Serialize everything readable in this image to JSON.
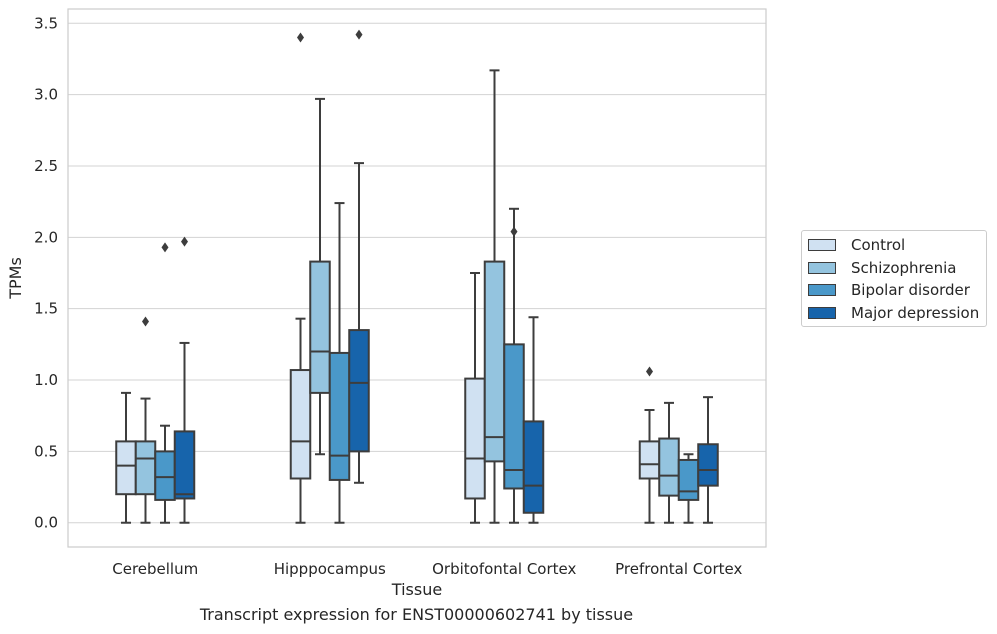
{
  "chart_data": {
    "type": "box",
    "xlabel": "Tissue",
    "ylabel": "TPMs",
    "ylim": [
      -0.17,
      3.6
    ],
    "yticks": [
      0.0,
      0.5,
      1.0,
      1.5,
      2.0,
      2.5,
      3.0,
      3.5
    ],
    "ytick_labels": [
      "0.0",
      "0.5",
      "1.0",
      "1.5",
      "2.0",
      "2.5",
      "3.0",
      "3.5"
    ],
    "grid": "horizontal",
    "legend_position": "right",
    "categories": [
      "Cerebellum",
      "Hipppocampus",
      "Orbitofontal Cortex",
      "Prefrontal Cortex"
    ],
    "series": [
      {
        "name": "Control",
        "color": "#d0e1f2",
        "boxes": [
          {
            "whislo": 0.0,
            "q1": 0.2,
            "median": 0.4,
            "q3": 0.57,
            "whishi": 0.91,
            "fliers": []
          },
          {
            "whislo": 0.0,
            "q1": 0.31,
            "median": 0.57,
            "q3": 1.07,
            "whishi": 1.43,
            "fliers": [
              3.4
            ]
          },
          {
            "whislo": 0.0,
            "q1": 0.17,
            "median": 0.45,
            "q3": 1.01,
            "whishi": 1.75,
            "fliers": []
          },
          {
            "whislo": 0.0,
            "q1": 0.31,
            "median": 0.41,
            "q3": 0.57,
            "whishi": 0.79,
            "fliers": [
              1.06
            ]
          }
        ]
      },
      {
        "name": "Schizophrenia",
        "color": "#94c4df",
        "boxes": [
          {
            "whislo": 0.0,
            "q1": 0.2,
            "median": 0.45,
            "q3": 0.57,
            "whishi": 0.87,
            "fliers": [
              1.41
            ]
          },
          {
            "whislo": 0.48,
            "q1": 0.91,
            "median": 1.2,
            "q3": 1.83,
            "whishi": 2.97,
            "fliers": []
          },
          {
            "whislo": 0.0,
            "q1": 0.43,
            "median": 0.6,
            "q3": 1.83,
            "whishi": 3.17,
            "fliers": []
          },
          {
            "whislo": 0.0,
            "q1": 0.19,
            "median": 0.33,
            "q3": 0.59,
            "whishi": 0.84,
            "fliers": []
          }
        ]
      },
      {
        "name": "Bipolar disorder",
        "color": "#4a98c9",
        "boxes": [
          {
            "whislo": 0.0,
            "q1": 0.16,
            "median": 0.32,
            "q3": 0.5,
            "whishi": 0.68,
            "fliers": [
              1.93
            ]
          },
          {
            "whislo": 0.0,
            "q1": 0.3,
            "median": 0.47,
            "q3": 1.19,
            "whishi": 2.24,
            "fliers": []
          },
          {
            "whislo": 0.0,
            "q1": 0.24,
            "median": 0.37,
            "q3": 1.25,
            "whishi": 2.2,
            "fliers": [
              2.04
            ]
          },
          {
            "whislo": 0.0,
            "q1": 0.16,
            "median": 0.22,
            "q3": 0.44,
            "whishi": 0.48,
            "fliers": []
          }
        ]
      },
      {
        "name": "Major depression",
        "color": "#1764ab",
        "boxes": [
          {
            "whislo": 0.0,
            "q1": 0.17,
            "median": 0.2,
            "q3": 0.64,
            "whishi": 1.26,
            "fliers": [
              1.97
            ]
          },
          {
            "whislo": 0.28,
            "q1": 0.5,
            "median": 0.98,
            "q3": 1.35,
            "whishi": 2.52,
            "fliers": [
              3.42
            ]
          },
          {
            "whislo": 0.0,
            "q1": 0.07,
            "median": 0.26,
            "q3": 0.71,
            "whishi": 1.44,
            "fliers": []
          },
          {
            "whislo": 0.0,
            "q1": 0.26,
            "median": 0.37,
            "q3": 0.55,
            "whishi": 0.88,
            "fliers": []
          }
        ]
      }
    ]
  },
  "caption": "Transcript expression for ENST00000602741 by tissue"
}
